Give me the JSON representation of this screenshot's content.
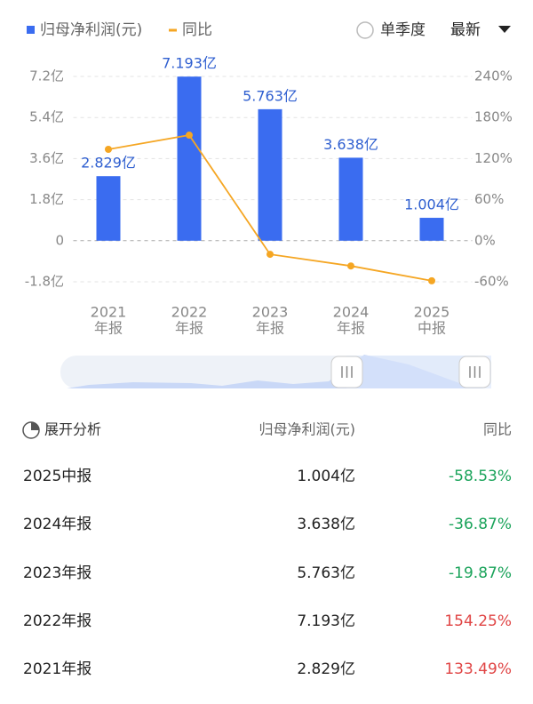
{
  "chart_data": {
    "type": "bar",
    "categories": [
      [
        "2021",
        "年报"
      ],
      [
        "2022",
        "年报"
      ],
      [
        "2023",
        "年报"
      ],
      [
        "2024",
        "年报"
      ],
      [
        "2025",
        "中报"
      ]
    ],
    "series": [
      {
        "name": "归母净利润(元)",
        "type": "bar",
        "color": "#3a6cf0",
        "values": [
          2.829,
          7.193,
          5.763,
          3.638,
          1.004
        ],
        "value_labels": [
          "2.829亿",
          "7.193亿",
          "5.763亿",
          "3.638亿",
          "1.004亿"
        ]
      },
      {
        "name": "同比",
        "type": "line",
        "axis": "y2",
        "color": "#f5a623",
        "values": [
          133.49,
          154.25,
          -19.87,
          -36.87,
          -58.53
        ]
      }
    ],
    "ylim": [
      -1.8,
      7.2
    ],
    "yticks": [
      {
        "value": -1.8,
        "label": "-1.8亿"
      },
      0,
      {
        "value": 1.8,
        "label": "1.8亿"
      },
      {
        "value": 3.6,
        "label": "3.6亿"
      },
      {
        "value": 5.4,
        "label": "5.4亿"
      },
      {
        "value": 7.2,
        "label": "7.2亿"
      }
    ],
    "y2lim": [
      -60,
      240
    ],
    "y2ticks": [
      {
        "value": -60,
        "label": "-60%"
      },
      {
        "value": 0,
        "label": "0%"
      },
      {
        "value": 60,
        "label": "60%"
      },
      {
        "value": 120,
        "label": "120%"
      },
      {
        "value": 180,
        "label": "180%"
      },
      {
        "value": 240,
        "label": "240%"
      }
    ],
    "grid": true
  },
  "controls": {
    "quarterly": "单季度",
    "sort": "最新"
  },
  "table": {
    "header": [
      "展开分析",
      "归母净利润(元)",
      "同比"
    ],
    "rows": [
      [
        "2025中报",
        "1.004亿",
        "-58.53%"
      ],
      [
        "2024年报",
        "3.638亿",
        "-36.87%"
      ],
      [
        "2023年报",
        "5.763亿",
        "-19.87%"
      ],
      [
        "2022年报",
        "7.193亿",
        "154.25%"
      ],
      [
        "2021年报",
        "2.829亿",
        "133.49%"
      ]
    ]
  }
}
